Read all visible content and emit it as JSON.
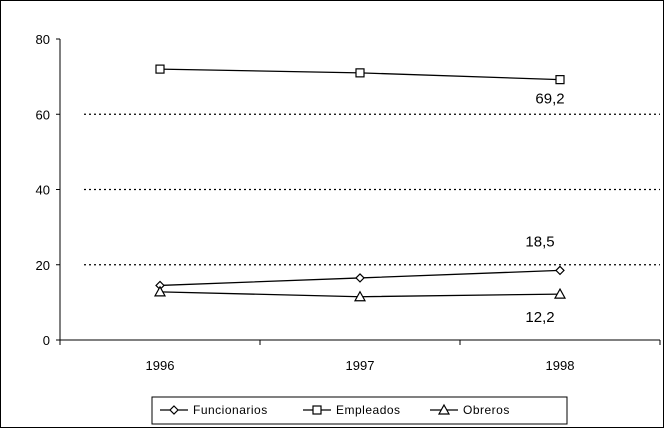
{
  "chart_data": {
    "type": "line",
    "categories": [
      "1996",
      "1997",
      "1998"
    ],
    "ylim": [
      0,
      80
    ],
    "yticks": [
      0,
      20,
      40,
      60,
      80
    ],
    "grid": "dotted-horizontal",
    "legend_position": "bottom",
    "title": "",
    "xlabel": "",
    "ylabel": "",
    "series": [
      {
        "name": "Funcionarios",
        "values": [
          14.5,
          16.5,
          18.5
        ],
        "marker": "diamond",
        "color": "#000000"
      },
      {
        "name": "Empleados",
        "values": [
          72.0,
          71.0,
          69.2
        ],
        "marker": "square",
        "color": "#000000"
      },
      {
        "name": "Obreros",
        "values": [
          12.8,
          11.5,
          12.2
        ],
        "marker": "triangle",
        "color": "#000000"
      }
    ],
    "annotations": [
      {
        "text": "69,2",
        "series": "Empleados",
        "category": "1998"
      },
      {
        "text": "18,5",
        "series": "Funcionarios",
        "category": "1998"
      },
      {
        "text": "12,2",
        "series": "Obreros",
        "category": "1998"
      }
    ]
  }
}
